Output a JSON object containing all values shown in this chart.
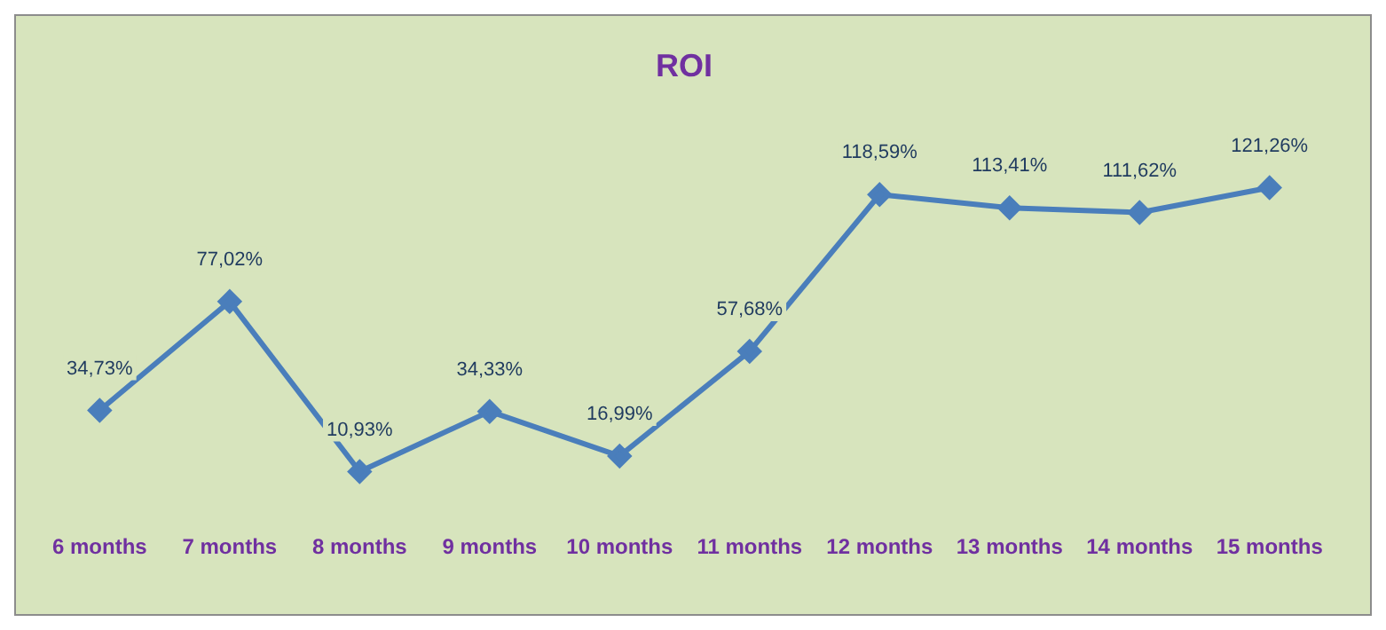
{
  "chart_data": {
    "type": "line",
    "title": "ROI",
    "categories": [
      "6 months",
      "7 months",
      "8 months",
      "9 months",
      "10 months",
      "11 months",
      "12 months",
      "13 months",
      "14 months",
      "15 months"
    ],
    "values": [
      34.73,
      77.02,
      10.93,
      34.33,
      16.99,
      57.68,
      118.59,
      113.41,
      111.62,
      121.26
    ],
    "value_labels": [
      "34,73%",
      "77,02%",
      "10,93%",
      "34,33%",
      "16,99%",
      "57,68%",
      "118,59%",
      "113,41%",
      "111,62%",
      "121,26%"
    ],
    "color": "#4a7ebb",
    "marker": "diamond",
    "line_style": "solid",
    "grid": false,
    "legend": false,
    "tick_labels": "x"
  }
}
